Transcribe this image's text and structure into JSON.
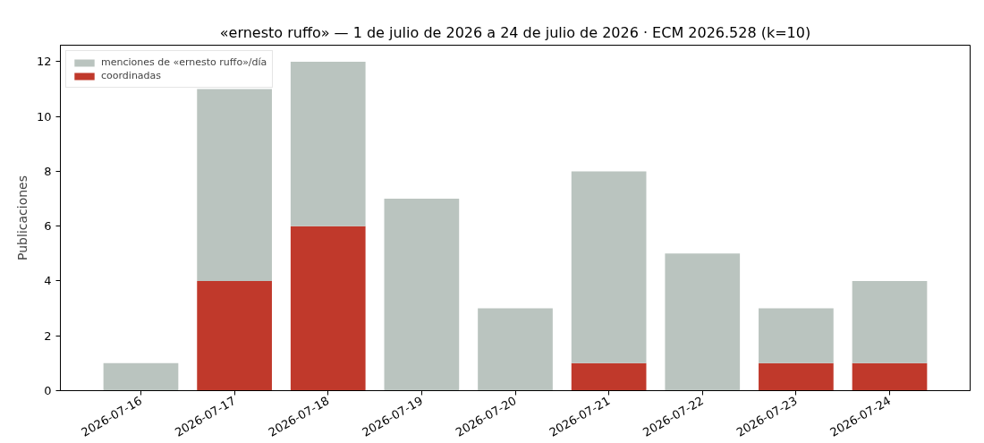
{
  "chart_data": {
    "type": "bar",
    "title": "«ernesto ruffo» — 1 de julio de 2026 a 24 de julio de 2026 · ECM 2026.528 (k=10)",
    "ylabel": "Publicaciones",
    "categories": [
      "2026-07-16",
      "2026-07-17",
      "2026-07-18",
      "2026-07-19",
      "2026-07-20",
      "2026-07-21",
      "2026-07-22",
      "2026-07-23",
      "2026-07-24"
    ],
    "stacked": true,
    "series": [
      {
        "name": "coordinadas",
        "color": "#c0392b",
        "values": [
          null,
          4,
          6,
          null,
          null,
          1,
          null,
          1,
          1
        ]
      },
      {
        "name": "menciones de «ernesto ruffo»/día",
        "color": "#bac4bf",
        "values": [
          1,
          7,
          6,
          7,
          3,
          7,
          5,
          2,
          3
        ]
      }
    ],
    "ylim": [
      0,
      12.6
    ],
    "yticks": [
      0,
      2,
      4,
      6,
      8,
      10,
      12
    ],
    "legend": "top left"
  }
}
